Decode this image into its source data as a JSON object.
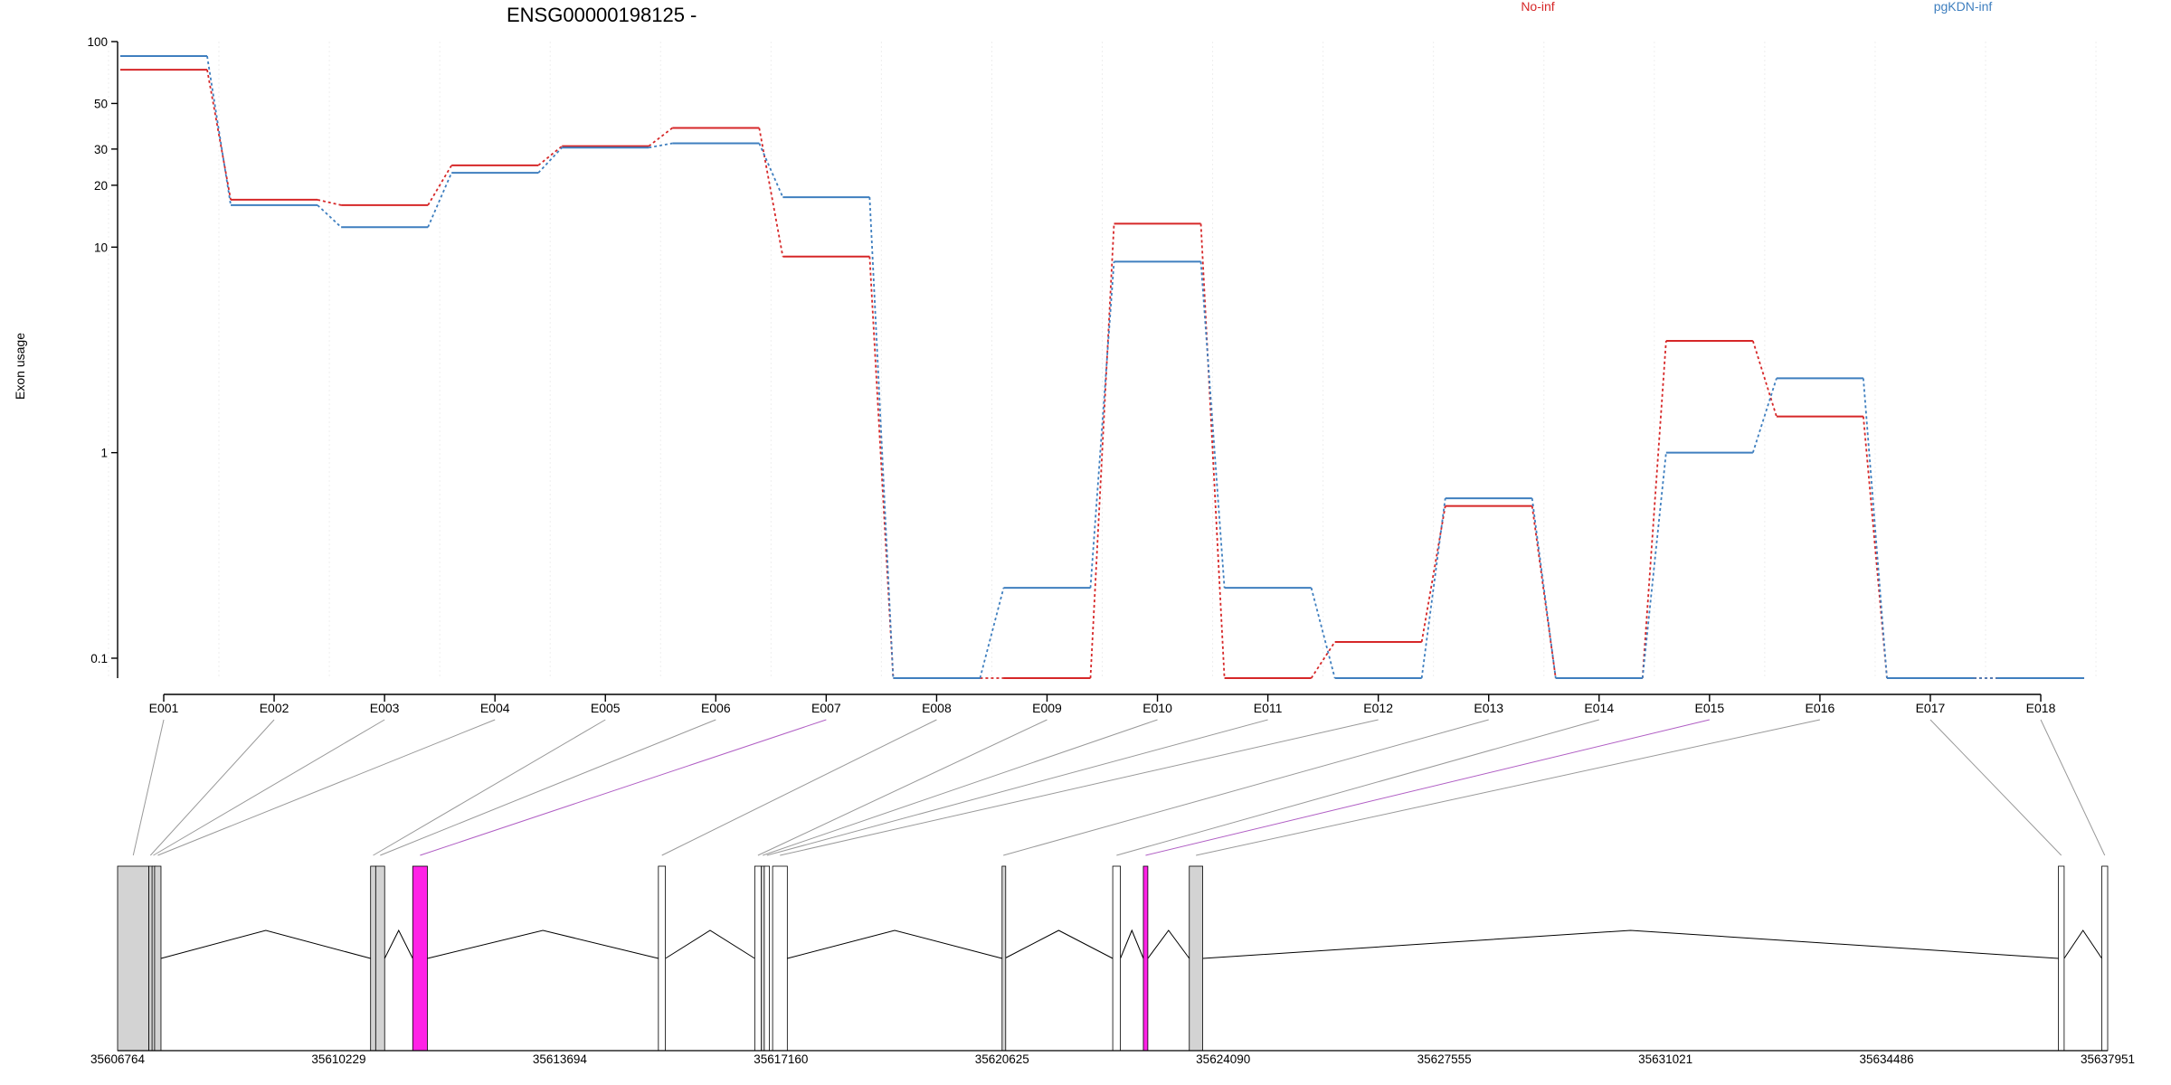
{
  "chart_data": {
    "type": "line",
    "title": "ENSG00000198125 -",
    "ylabel": "Exon usage",
    "xlabel": "",
    "y_scale": "log",
    "ylim": [
      0.08,
      100
    ],
    "y_ticks": [
      {
        "label": "100",
        "value": 100
      },
      {
        "label": "50",
        "value": 50
      },
      {
        "label": "30",
        "value": 30
      },
      {
        "label": "20",
        "value": 20
      },
      {
        "label": "10",
        "value": 10
      },
      {
        "label": "1",
        "value": 1
      },
      {
        "label": "0.1",
        "value": 0.1
      }
    ],
    "categories": [
      "E001",
      "E002",
      "E003",
      "E004",
      "E005",
      "E006",
      "E007",
      "E008",
      "E009",
      "E010",
      "E011",
      "E012",
      "E013",
      "E014",
      "E015",
      "E016",
      "E017",
      "E018"
    ],
    "legend_position": "top-right",
    "grid": true,
    "series": [
      {
        "name": "No-inf",
        "color": "#d62728",
        "values": [
          73,
          17,
          16,
          25,
          31,
          38,
          9.0,
          0.08,
          0.08,
          13,
          0.08,
          0.12,
          0.55,
          0.08,
          3.5,
          1.5,
          0.08,
          0.08
        ]
      },
      {
        "name": "pgKDN-inf",
        "color": "#3f7fbf",
        "values": [
          85,
          16,
          12.5,
          23,
          30.5,
          32,
          17.5,
          0.08,
          0.22,
          8.5,
          0.22,
          0.08,
          0.6,
          0.08,
          1.0,
          2.3,
          0.08,
          0.08
        ]
      }
    ],
    "gene_model": {
      "coord_ticks": [
        "35606764",
        "35610229",
        "35613694",
        "35617160",
        "35620625",
        "35624090",
        "35627555",
        "35631021",
        "35634486",
        "35637951"
      ],
      "coord_range": [
        35606764,
        37951
      ],
      "exon_fill_default": "#d3d3d3",
      "exon_fill_highlight": "#ff22e6",
      "exon_fill_empty": "#ffffff",
      "exons": [
        {
          "id": "E001",
          "start": 35606764,
          "end": 35607254,
          "fill": "grey"
        },
        {
          "id": "E002",
          "start": 35607254,
          "end": 35607304,
          "fill": "grey"
        },
        {
          "id": "E003",
          "start": 35607304,
          "end": 35607344,
          "fill": "grey"
        },
        {
          "id": "E004",
          "start": 35607344,
          "end": 35607444,
          "fill": "grey"
        },
        {
          "id": "E005",
          "start": 35610729,
          "end": 35610809,
          "fill": "grey"
        },
        {
          "id": "E006",
          "start": 35610809,
          "end": 35610949,
          "fill": "grey"
        },
        {
          "id": "E007",
          "start": 35611389,
          "end": 35611619,
          "fill": "highlight"
        },
        {
          "id": "E008",
          "start": 35615239,
          "end": 35615349,
          "fill": "white"
        },
        {
          "id": "E009",
          "start": 35616749,
          "end": 35616849,
          "fill": "white"
        },
        {
          "id": "E010",
          "start": 35616849,
          "end": 35616899,
          "fill": "grey"
        },
        {
          "id": "E011",
          "start": 35616899,
          "end": 35616979,
          "fill": "white"
        },
        {
          "id": "E012",
          "start": 35617029,
          "end": 35617259,
          "fill": "white"
        },
        {
          "id": "E013",
          "start": 35620625,
          "end": 35620665,
          "fill": "grey"
        },
        {
          "id": "E014",
          "start": 35622359,
          "end": 35622479,
          "fill": "white"
        },
        {
          "id": "E015",
          "start": 35622839,
          "end": 35622909,
          "fill": "highlight"
        },
        {
          "id": "E016",
          "start": 35623559,
          "end": 35623769,
          "fill": "grey"
        },
        {
          "id": "E017",
          "start": 35637179,
          "end": 35637269,
          "fill": "white"
        },
        {
          "id": "E018",
          "start": 35637859,
          "end": 35637951,
          "fill": "white"
        }
      ],
      "highlighted_exons": [
        "E007",
        "E015"
      ]
    }
  }
}
